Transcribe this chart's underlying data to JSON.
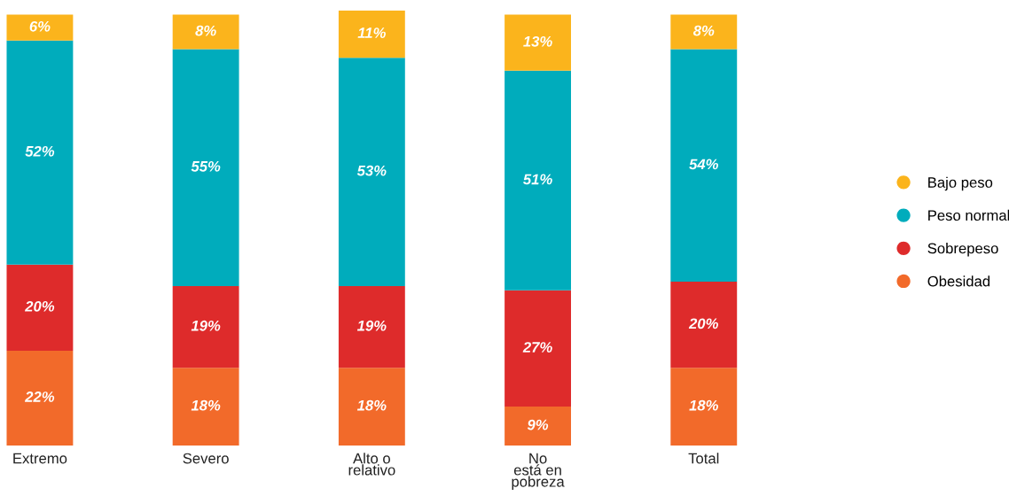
{
  "chart_data": {
    "type": "bar",
    "stacked": true,
    "legend": "right",
    "categories": [
      "Extremo",
      "Severo",
      "Alto o\nrelativo",
      "No\nestá en\npobreza",
      "Total"
    ],
    "series": [
      {
        "name": "Obesidad",
        "color": "#f26a2a",
        "values": [
          22,
          18,
          18,
          9,
          18
        ],
        "value_labels": [
          "22%",
          "18%",
          "18%",
          "9%",
          "18%"
        ]
      },
      {
        "name": "Sobrepeso",
        "color": "#de2b2b",
        "values": [
          20,
          19,
          19,
          27,
          20
        ],
        "value_labels": [
          "20%",
          "19%",
          "19%",
          "27%",
          "20%"
        ]
      },
      {
        "name": "Peso normal",
        "color": "#00acbc",
        "values": [
          52,
          55,
          53,
          51,
          54
        ],
        "value_labels": [
          "52%",
          "55%",
          "53%",
          "51%",
          "54%"
        ]
      },
      {
        "name": "Bajo peso",
        "color": "#fbb41c",
        "values": [
          6,
          8,
          11,
          13,
          8
        ],
        "value_labels": [
          "6%",
          "8%",
          "11%",
          "13%",
          "8%"
        ]
      }
    ]
  }
}
